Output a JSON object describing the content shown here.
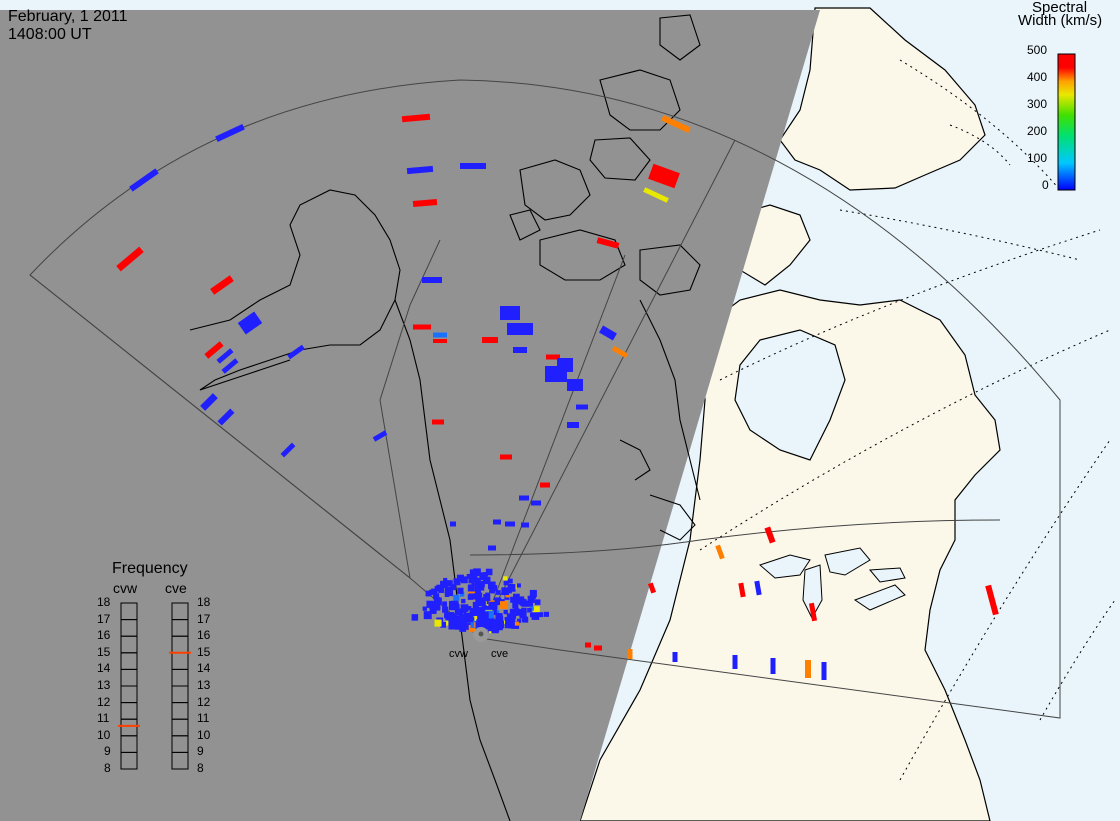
{
  "title": {
    "date": "February, 1 2011",
    "time": "1408:00 UT"
  },
  "colorbar": {
    "title_line1": "Spectral",
    "title_line2": "Width (km/s)",
    "ticks": [
      "500",
      "400",
      "300",
      "200",
      "100",
      "0"
    ],
    "min": 0,
    "max": 500,
    "colors": [
      "#0000ff",
      "#00c8ff",
      "#00e070",
      "#40e000",
      "#e8e800",
      "#ffa000",
      "#ff0000"
    ]
  },
  "frequency_panel": {
    "title": "Frequency",
    "col_left": "cvw",
    "col_right": "cve",
    "scale": [
      "18",
      "17",
      "16",
      "15",
      "14",
      "13",
      "12",
      "11",
      "10",
      "9",
      "8"
    ],
    "cvw_freq_mhz": 10.6,
    "cve_freq_mhz": 15.0,
    "marker_color": "#ff4000"
  },
  "radars": [
    {
      "code": "cvw",
      "label": "cvw"
    },
    {
      "code": "cve",
      "label": "cve"
    }
  ],
  "colors": {
    "night": "#929292",
    "day_land": "#fbf8ea",
    "day_ocean": "#e9f5fb",
    "coast": "#000000",
    "fov": "#444444"
  }
}
